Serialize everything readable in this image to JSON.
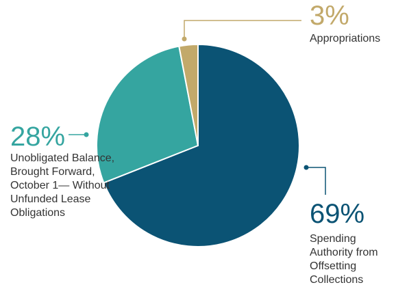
{
  "chart_data": {
    "type": "pie",
    "categories": [
      "Spending Authority from Offsetting Collections",
      "Unobligated Balance, Brought Forward, October 1— Without Unfunded Lease Obligations",
      "Appropriations"
    ],
    "values": [
      69,
      28,
      3
    ],
    "value_labels": [
      "69%",
      "28%",
      "3%"
    ],
    "colors": [
      "#0b5374",
      "#35a5a0",
      "#c2a96a"
    ]
  }
}
